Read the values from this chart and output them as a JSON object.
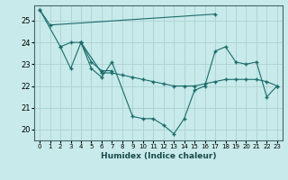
{
  "xlabel": "Humidex (Indice chaleur)",
  "background_color": "#c8eaea",
  "grid_color": "#b0d4d4",
  "line_color": "#1a6b6b",
  "xlim": [
    -0.5,
    23.5
  ],
  "ylim": [
    19.5,
    25.7
  ],
  "yticks": [
    20,
    21,
    22,
    23,
    24,
    25
  ],
  "xticks": [
    0,
    1,
    2,
    3,
    4,
    5,
    6,
    7,
    8,
    9,
    10,
    11,
    12,
    13,
    14,
    15,
    16,
    17,
    18,
    19,
    20,
    21,
    22,
    23
  ],
  "series": [
    [
      25.5,
      24.8,
      null,
      null,
      null,
      null,
      null,
      null,
      null,
      null,
      null,
      null,
      null,
      null,
      null,
      null,
      null,
      25.3,
      null,
      null,
      null,
      null,
      null,
      null
    ],
    [
      25.5,
      null,
      23.8,
      24.0,
      24.0,
      23.1,
      22.7,
      22.7,
      null,
      null,
      null,
      null,
      null,
      null,
      null,
      null,
      null,
      null,
      null,
      null,
      null,
      null,
      null,
      null
    ],
    [
      null,
      null,
      23.8,
      22.8,
      24.0,
      22.8,
      22.4,
      23.1,
      null,
      20.6,
      20.5,
      20.5,
      20.2,
      19.8,
      20.5,
      21.8,
      22.0,
      23.6,
      23.8,
      23.1,
      23.0,
      23.1,
      21.5,
      22.0
    ],
    [
      null,
      null,
      null,
      null,
      24.0,
      null,
      22.6,
      22.6,
      22.5,
      22.4,
      22.3,
      22.2,
      22.1,
      22.0,
      22.0,
      22.0,
      22.1,
      22.2,
      22.3,
      22.3,
      22.3,
      22.3,
      22.2,
      22.0
    ]
  ]
}
